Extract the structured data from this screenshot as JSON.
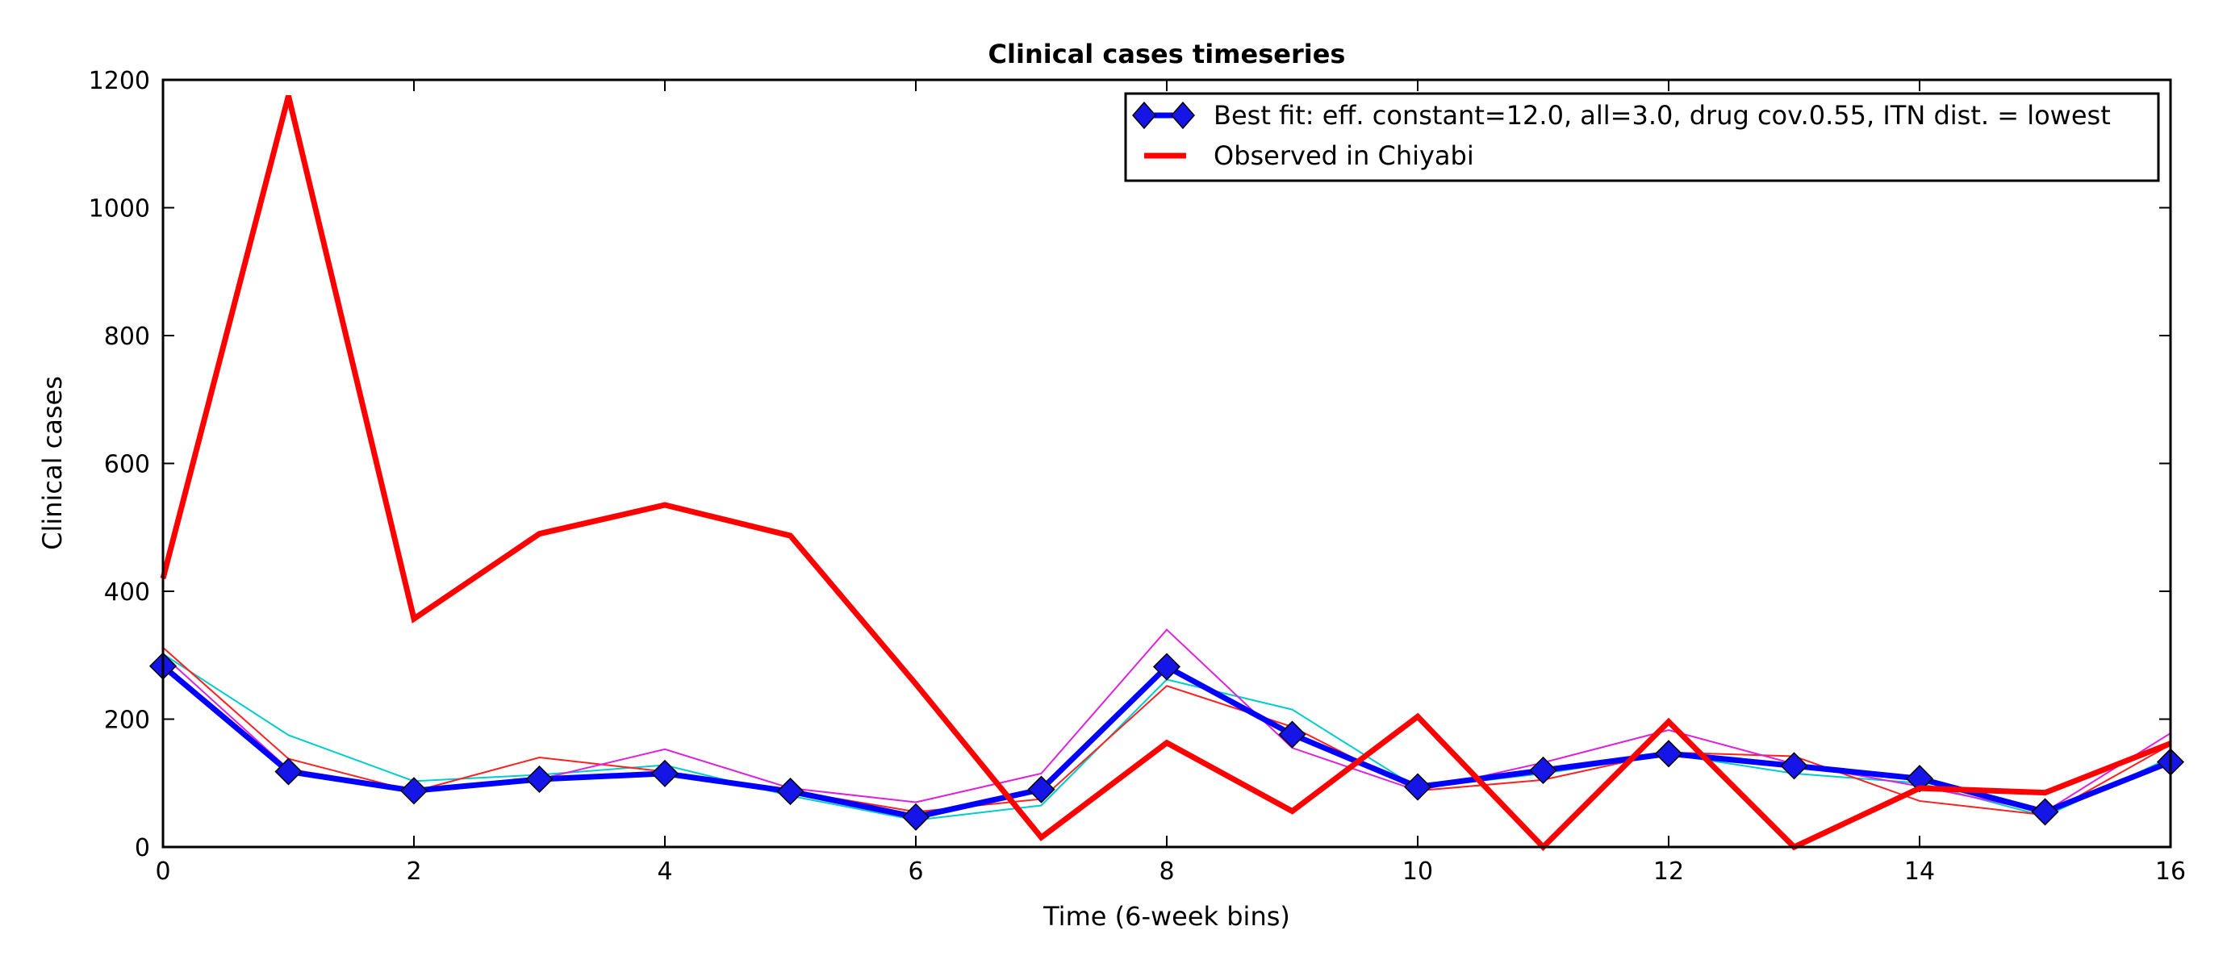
{
  "chart_data": {
    "type": "line",
    "title": "Clinical cases timeseries",
    "xlabel": "Time (6-week bins)",
    "ylabel": "Clinical cases",
    "xlim": [
      0,
      16
    ],
    "ylim": [
      0,
      1200
    ],
    "xticks": [
      0,
      2,
      4,
      6,
      8,
      10,
      12,
      14,
      16
    ],
    "yticks": [
      0,
      200,
      400,
      600,
      800,
      1000,
      1200
    ],
    "grid": false,
    "legend_position": "top-right",
    "x": [
      0,
      1,
      2,
      3,
      4,
      5,
      6,
      7,
      8,
      9,
      10,
      11,
      12,
      13,
      14,
      15,
      16
    ],
    "series": [
      {
        "name": "Best fit: eff. constant=12.0, all=3.0, drug cov.0.55, ITN dist. = lowest",
        "color": "#0000ff",
        "marker": "diamond",
        "marker_color": "#1515e8",
        "legend": true,
        "values": [
          283,
          118,
          88,
          106,
          115,
          87,
          47,
          90,
          282,
          176,
          94,
          120,
          146,
          127,
          107,
          55,
          133
        ]
      },
      {
        "name": "Observed in Chiyabi",
        "color": "#ff0000",
        "legend": true,
        "values": [
          420,
          1175,
          357,
          490,
          535,
          487,
          255,
          15,
          163,
          56,
          204,
          0,
          196,
          0,
          92,
          85,
          162
        ]
      },
      {
        "color": "#00cccc",
        "legend": false,
        "values": [
          302,
          175,
          103,
          113,
          128,
          80,
          42,
          65,
          262,
          215,
          92,
          115,
          145,
          115,
          100,
          48,
          140
        ]
      },
      {
        "color": "#ff2020",
        "legend": false,
        "values": [
          312,
          138,
          87,
          140,
          118,
          88,
          55,
          75,
          252,
          188,
          88,
          105,
          148,
          142,
          72,
          50,
          160
        ]
      },
      {
        "color": "#dd22dd",
        "legend": false,
        "values": [
          300,
          122,
          90,
          106,
          153,
          92,
          70,
          115,
          340,
          155,
          88,
          132,
          183,
          130,
          95,
          55,
          178
        ]
      }
    ]
  }
}
